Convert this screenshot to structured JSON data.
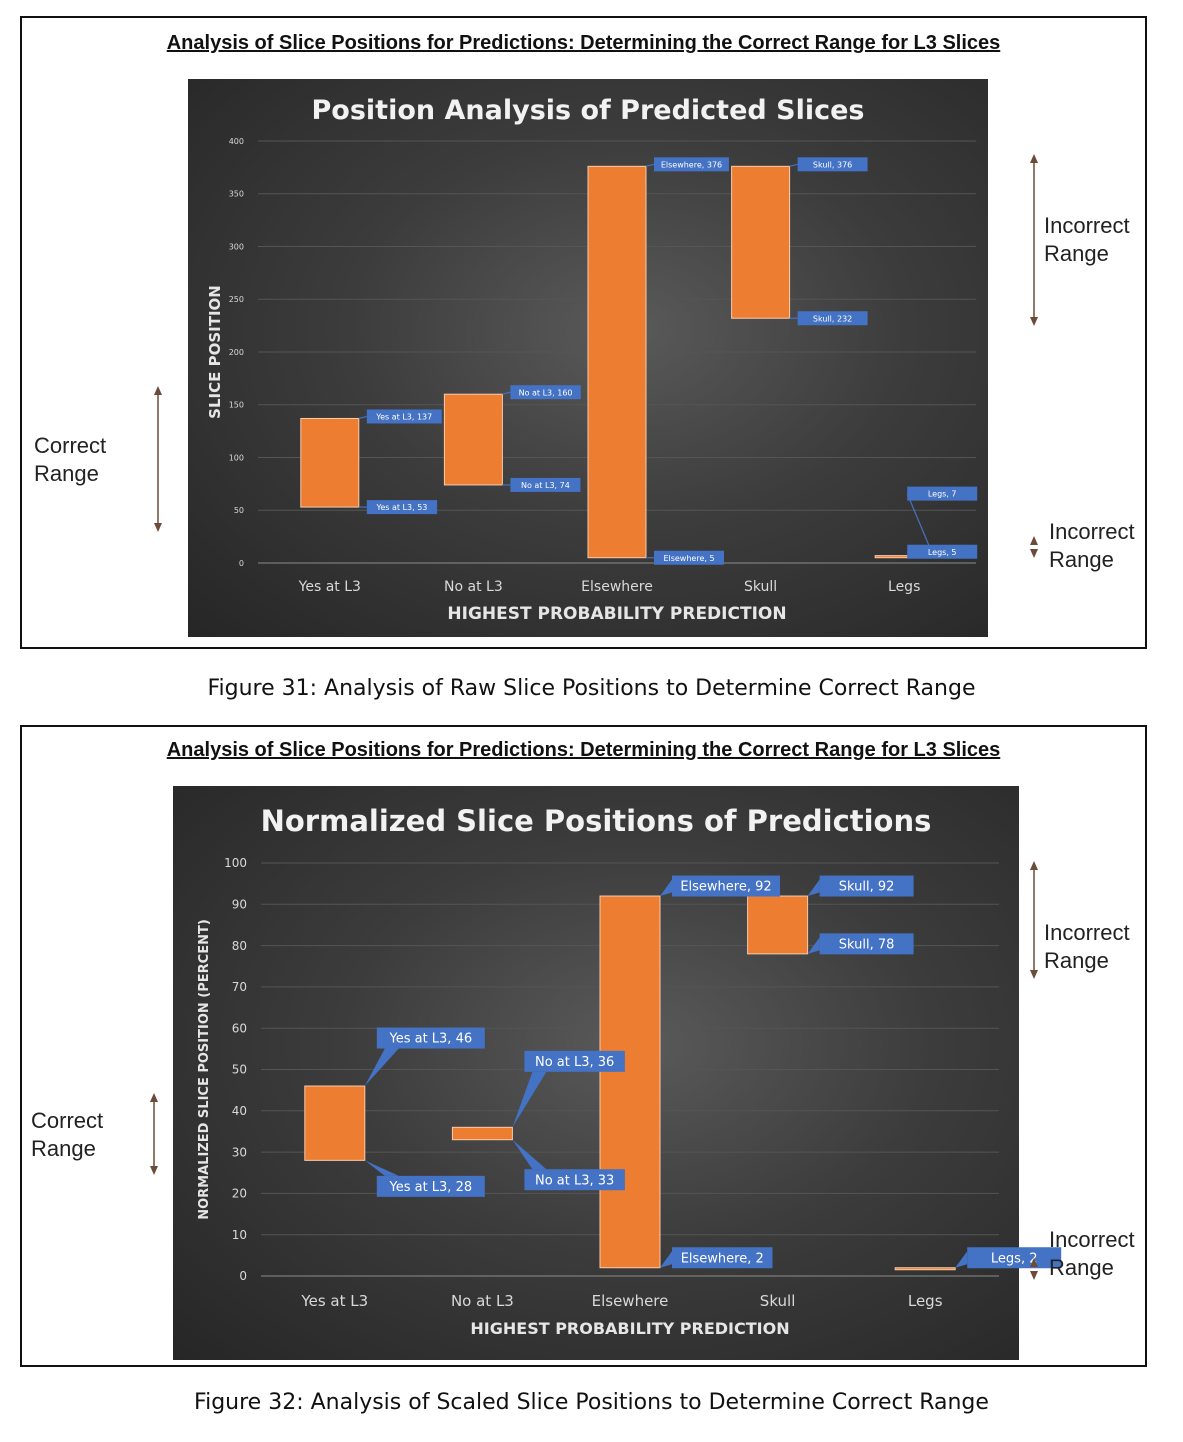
{
  "figures": [
    {
      "panel_title": "Analysis of Slice Positions for Predictions: Determining the Correct Range for L3 Slices",
      "caption": "Figure 31: Analysis of Raw Slice Positions to Determine Correct Range",
      "correct_range_label": [
        "Correct",
        "Range"
      ],
      "incorrect_range_top_label": [
        "Incorrect",
        "Range"
      ],
      "incorrect_range_bottom_label": [
        "Incorrect",
        "Range"
      ]
    },
    {
      "panel_title": "Analysis of Slice Positions for Predictions: Determining the Correct Range for L3 Slices",
      "caption": "Figure 32: Analysis of Scaled Slice Positions to Determine Correct Range",
      "correct_range_label": [
        "Correct",
        "Range"
      ],
      "incorrect_range_top_label": [
        "Incorrect",
        "Range"
      ],
      "incorrect_range_bottom_label": [
        "Incorrect",
        "Range"
      ]
    }
  ],
  "colors": {
    "bar": "#ED7D31",
    "label_bg": "#4472C4",
    "axis_text": "#d9d9d9",
    "arrow": "#6b4c3b"
  },
  "chart_data": [
    {
      "type": "bar",
      "subtype": "floating-range",
      "title": "Position Analysis of Predicted Slices",
      "xlabel": "HIGHEST PROBABILITY PREDICTION",
      "ylabel": "SLICE POSITION",
      "ylim": [
        0,
        400
      ],
      "yticks": [
        0,
        50,
        100,
        150,
        200,
        250,
        300,
        350,
        400
      ],
      "categories": [
        "Yes at L3",
        "No at L3",
        "Elsewhere",
        "Skull",
        "Legs"
      ],
      "low": [
        53,
        74,
        5,
        232,
        5
      ],
      "high": [
        137,
        160,
        376,
        376,
        7
      ],
      "low_labels": [
        "Yes at L3, 53",
        "No at L3, 74",
        "Elsewhere, 5",
        "Skull, 232",
        "Legs, 5"
      ],
      "high_labels": [
        "Yes at L3, 137",
        "No at L3, 160",
        "Elsewhere, 376",
        "Skull, 376",
        "Legs, 7"
      ],
      "grid": true
    },
    {
      "type": "bar",
      "subtype": "floating-range",
      "title": "Normalized Slice Positions of Predictions",
      "xlabel": "HIGHEST PROBABILITY PREDICTION",
      "ylabel": "NORMALIZED SLICE POSITION (PERCENT)",
      "ylim": [
        0,
        100
      ],
      "yticks": [
        0,
        10,
        20,
        30,
        40,
        50,
        60,
        70,
        80,
        90,
        100
      ],
      "categories": [
        "Yes at L3",
        "No at L3",
        "Elsewhere",
        "Skull",
        "Legs"
      ],
      "low": [
        28,
        33,
        2,
        78,
        2
      ],
      "high": [
        46,
        36,
        92,
        92,
        2
      ],
      "low_labels": [
        "Yes at L3, 28",
        "No at L3, 33",
        "Elsewhere, 2",
        "Skull, 78",
        "Legs, 2"
      ],
      "high_labels": [
        "Yes at L3, 46",
        "No at L3, 36",
        "Elsewhere, 92",
        "Skull, 92",
        ""
      ],
      "grid": true
    }
  ]
}
